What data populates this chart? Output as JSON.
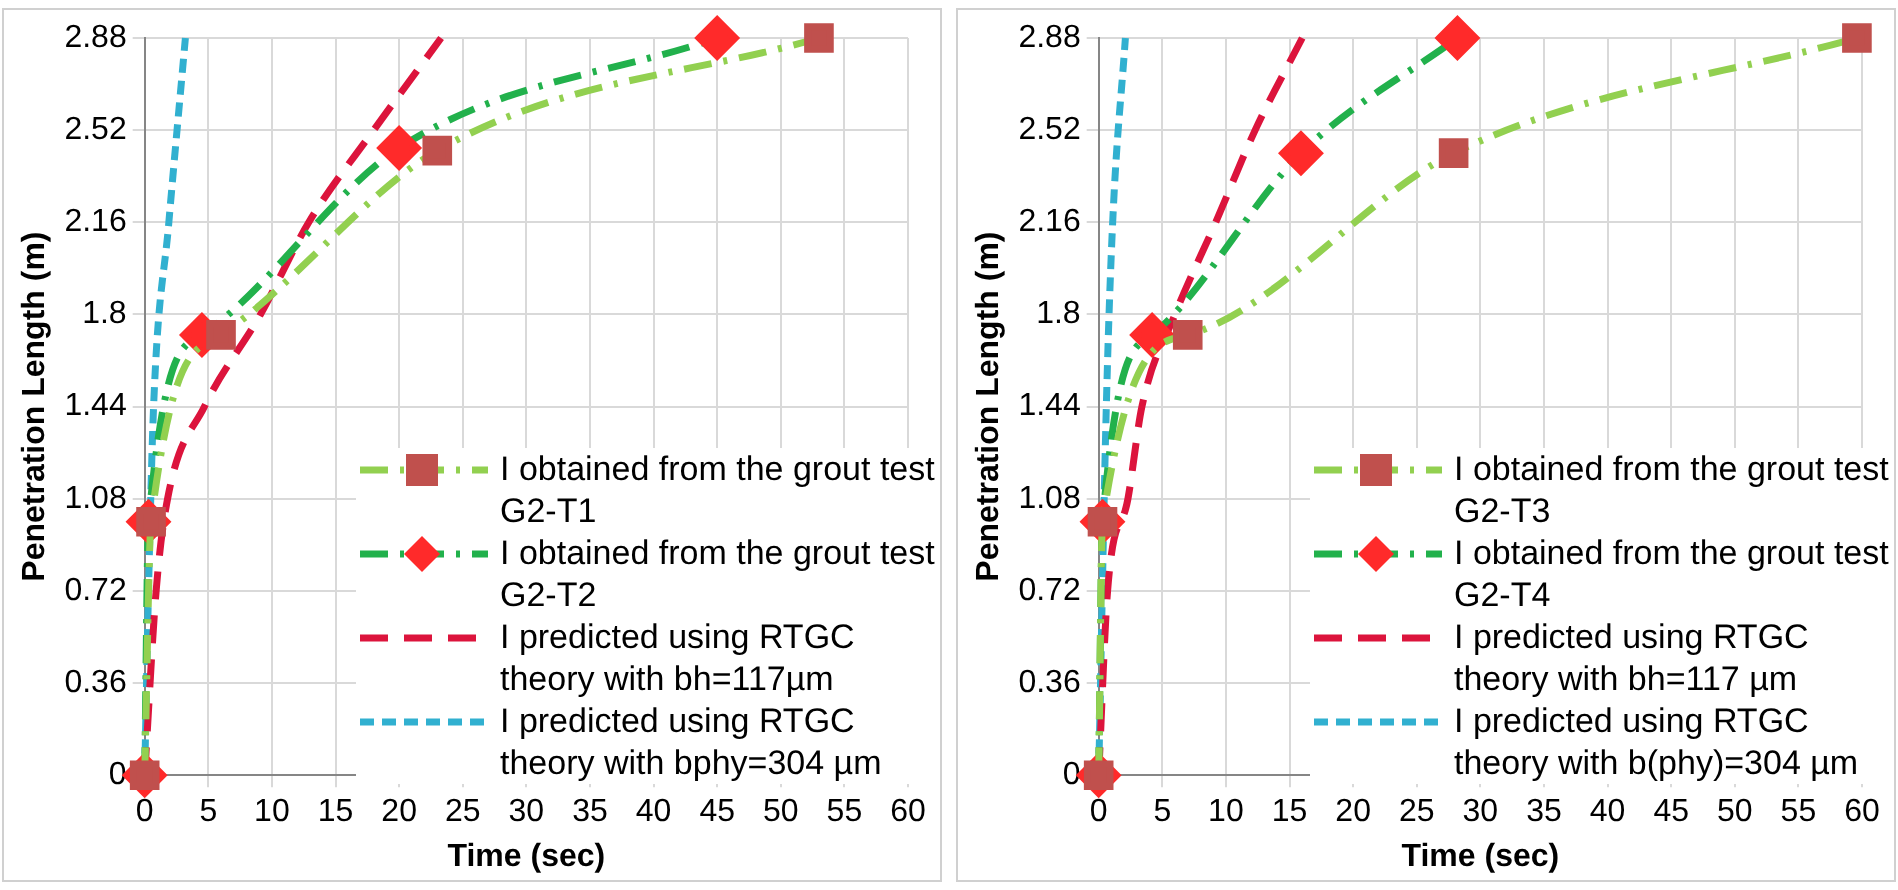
{
  "chart_data": [
    {
      "type": "line",
      "xlabel": "Time (sec)",
      "ylabel": "Penetration Length (m)",
      "xlim": [
        0,
        60
      ],
      "xticks": [
        0,
        5,
        10,
        15,
        20,
        25,
        30,
        35,
        40,
        45,
        50,
        55,
        60
      ],
      "ylim": [
        0,
        2.88
      ],
      "yticks": [
        0,
        0.36,
        0.72,
        1.08,
        1.44,
        1.8,
        2.16,
        2.52,
        2.88
      ],
      "grid": true,
      "legend": "bottom right",
      "series": [
        {
          "name": "I obtained from the grout test G2-T1",
          "color": "#92d050",
          "colors": [
            "#c0504d",
            "#c0504d",
            "#c0504d",
            "#c0504d",
            "#c0504d"
          ],
          "marker": "square",
          "line_style": "dashdot",
          "x": [
            0,
            0.5,
            6,
            23,
            53
          ],
          "values": [
            0,
            0.99,
            1.72,
            2.44,
            2.88
          ]
        },
        {
          "name": "I obtained from the grout test G2-T2",
          "color": "#22b14c",
          "colors": [
            "#ff2a2a",
            "#ff2a2a",
            "#ff2a2a",
            "#ff2a2a",
            "#ff2a2a"
          ],
          "marker": "diamond",
          "line_style": "dashdot",
          "x": [
            0,
            0.3,
            4.5,
            20,
            45
          ],
          "values": [
            0,
            0.99,
            1.72,
            2.45,
            2.88
          ]
        },
        {
          "name": "I predicted using RTGC theory with bh=117µm",
          "color": "#dc143c",
          "marker": "none",
          "line_style": "dashed",
          "x": [
            0,
            0.9,
            1.8,
            4.7,
            9.1,
            12.9,
            18,
            23.3
          ],
          "values": [
            0,
            0.72,
            1.08,
            1.44,
            1.8,
            2.16,
            2.52,
            2.88
          ]
        },
        {
          "name": "I predicted using RTGC theory with bphy=304 µm",
          "color": "#31b0d0",
          "marker": "none",
          "line_style": "dotted",
          "x": [
            0,
            0.3,
            0.7,
            1.9,
            3.2
          ],
          "values": [
            0,
            0.72,
            1.44,
            2.16,
            2.88
          ]
        }
      ]
    },
    {
      "type": "line",
      "xlabel": "Time (sec)",
      "ylabel": "Penetration Length (m)",
      "xlim": [
        0,
        60
      ],
      "xticks": [
        0,
        5,
        10,
        15,
        20,
        25,
        30,
        35,
        40,
        45,
        50,
        55,
        60
      ],
      "ylim": [
        0,
        2.88
      ],
      "yticks": [
        0,
        0.36,
        0.72,
        1.08,
        1.44,
        1.8,
        2.16,
        2.52,
        2.88
      ],
      "grid": true,
      "legend": "bottom right",
      "series": [
        {
          "name": "I obtained from the grout test G2-T3",
          "color": "#92d050",
          "colors": [
            "#c0504d",
            "#c0504d",
            "#c0504d",
            "#c0504d",
            "#c0504d"
          ],
          "marker": "square",
          "line_style": "dashdot",
          "x": [
            0,
            0.3,
            7,
            27.9,
            59.6
          ],
          "values": [
            0,
            0.99,
            1.72,
            2.43,
            2.88
          ]
        },
        {
          "name": "I obtained from the grout test G2-T4",
          "color": "#22b14c",
          "colors": [
            "#ff2a2a",
            "#ff2a2a",
            "#ff2a2a",
            "#ff2a2a",
            "#ff2a2a"
          ],
          "marker": "diamond",
          "line_style": "dashdot",
          "x": [
            0,
            0.3,
            4.2,
            15.9,
            28.2
          ],
          "values": [
            0,
            0.99,
            1.72,
            2.43,
            2.88
          ]
        },
        {
          "name": "I predicted using RTGC theory with bh=117 µm",
          "color": "#dc143c",
          "marker": "none",
          "line_style": "dashed",
          "x": [
            0,
            0.7,
            2.3,
            3.4,
            6,
            9.2,
            12.3,
            16
          ],
          "values": [
            0,
            0.72,
            1.08,
            1.44,
            1.8,
            2.16,
            2.52,
            2.88
          ]
        },
        {
          "name": "I predicted using RTGC theory with b(phy)=304 µm",
          "color": "#31b0d0",
          "marker": "none",
          "line_style": "dotted",
          "x": [
            0,
            0.6,
            1.1,
            2.1
          ],
          "values": [
            0,
            1.44,
            2.16,
            2.88
          ]
        }
      ]
    }
  ]
}
